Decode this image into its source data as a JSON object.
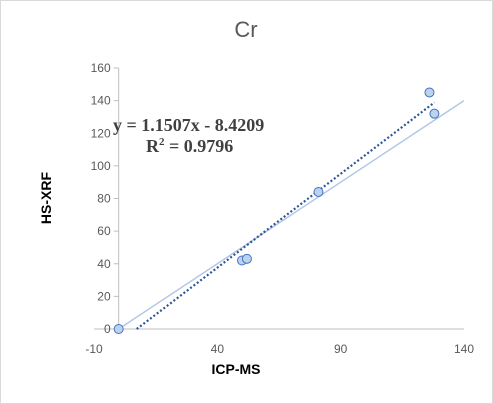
{
  "chart_data": {
    "type": "scatter",
    "title": "Cr",
    "xlabel": "ICP-MS",
    "ylabel": "HS-XRF",
    "xlim": [
      -10,
      140
    ],
    "ylim": [
      0,
      160
    ],
    "x_ticks": [
      -10,
      40,
      90,
      140
    ],
    "y_ticks": [
      0,
      20,
      40,
      60,
      80,
      100,
      120,
      140,
      160
    ],
    "grid": false,
    "legend": "none",
    "series": [
      {
        "points": [
          {
            "x": 0,
            "y": 0
          },
          {
            "x": 50,
            "y": 42
          },
          {
            "x": 52,
            "y": 43
          },
          {
            "x": 81,
            "y": 84
          },
          {
            "x": 126,
            "y": 145
          },
          {
            "x": 128,
            "y": 132
          }
        ]
      }
    ],
    "trendline": {
      "slope": 1.1507,
      "intercept": -8.4209,
      "equation": "y = 1.1507x - 8.4209",
      "r2_prefix": "R",
      "r2_sup": "2",
      "r2_suffix": " = 0.9796"
    },
    "reference_line": {
      "slope": 1,
      "intercept": 0
    },
    "colors": {
      "marker_fill": "#bcd3ee",
      "marker_stroke": "#4472c4",
      "trendline": "#2e5597",
      "reference_line": "#b4c7e7",
      "axis": "#bfbfbf"
    }
  }
}
